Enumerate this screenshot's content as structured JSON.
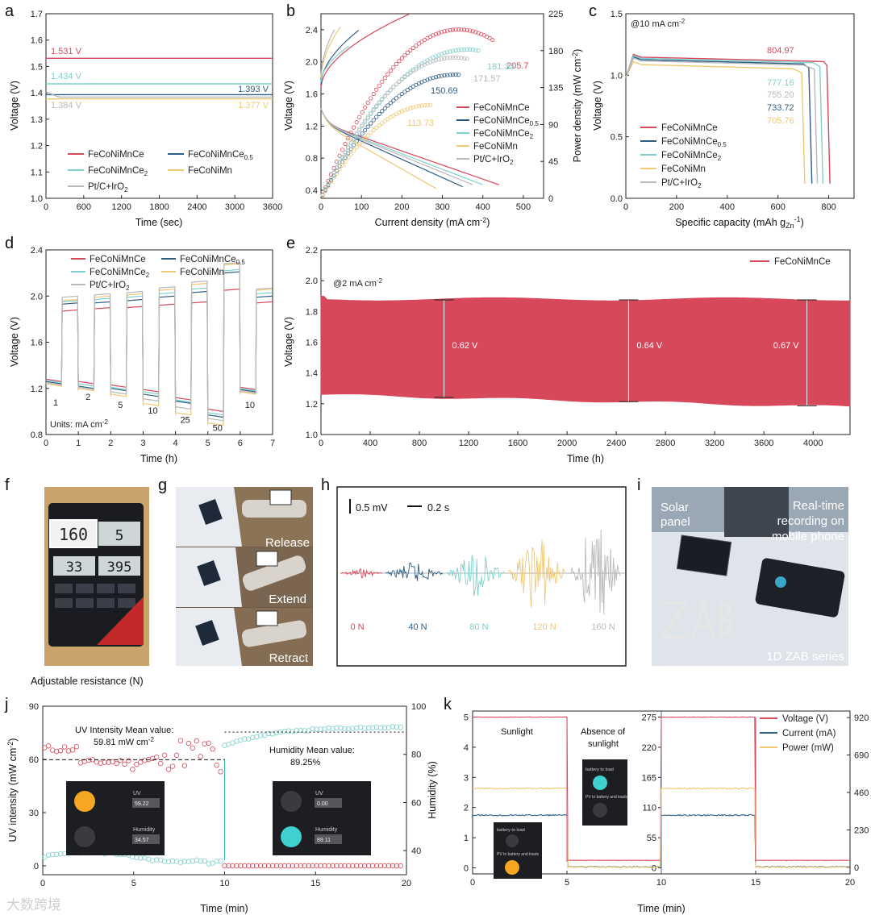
{
  "colors": {
    "red": "#d6485a",
    "blue": "#2f5d84",
    "cyan": "#7fd0cc",
    "yellow": "#efc873",
    "gray": "#b9b9b9",
    "teal": "#2bb5b0"
  },
  "series_names": [
    "FeCoNiMnCe",
    "FeCoNiMnCe0.5",
    "FeCoNiMnCe2",
    "FeCoNiMn",
    "Pt/C+IrO2"
  ],
  "chart_data": [
    {
      "panel": "a",
      "type": "line",
      "xlabel": "Time (sec)",
      "ylabel": "Voltage (V)",
      "xlim": [
        0,
        3600
      ],
      "ylim": [
        1.0,
        1.7
      ],
      "xticks": [
        0,
        600,
        1200,
        1800,
        2400,
        3000,
        3600
      ],
      "yticks": [
        1.0,
        1.1,
        1.2,
        1.3,
        1.4,
        1.5,
        1.6,
        1.7
      ],
      "series": [
        {
          "name": "FeCoNiMnCe",
          "value": 1.531
        },
        {
          "name": "FeCoNiMnCe0.5",
          "value": 1.393
        },
        {
          "name": "FeCoNiMnCe2",
          "value": 1.434
        },
        {
          "name": "FeCoNiMn",
          "value": 1.377
        },
        {
          "name": "Pt/C+IrO2",
          "value": 1.384
        }
      ],
      "annotations": [
        "1.531 V",
        "1.434 V",
        "1.393 V",
        "1.384 V",
        "1.377 V"
      ]
    },
    {
      "panel": "b",
      "type": "line",
      "xlabel": "Current density (mA cm-2)",
      "ylabel": "Voltage (V)",
      "y2label": "Power density (mW cm-2)",
      "xlim": [
        0,
        550
      ],
      "ylim": [
        0.3,
        2.6
      ],
      "y2lim": [
        0,
        225
      ],
      "xticks": [
        0,
        100,
        200,
        300,
        400,
        500
      ],
      "yticks": [
        0.4,
        0.8,
        1.2,
        1.6,
        2.0,
        2.4
      ],
      "y2ticks": [
        0,
        45,
        90,
        135,
        180,
        225
      ],
      "series": [
        {
          "name": "FeCoNiMnCe",
          "peak_power": 205.7,
          "peak_at": 340,
          "max_current": 440
        },
        {
          "name": "FeCoNiMnCe0.5",
          "peak_power": 150.69,
          "peak_at": 330,
          "max_current": 350
        },
        {
          "name": "FeCoNiMnCe2",
          "peak_power": 181.33,
          "peak_at": 360,
          "max_current": 400
        },
        {
          "name": "FeCoNiMn",
          "peak_power": 113.73,
          "peak_at": 270,
          "max_current": 285
        },
        {
          "name": "Pt/C+IrO2",
          "peak_power": 171.57,
          "peak_at": 330,
          "max_current": 375
        }
      ],
      "annotations": [
        "205.7",
        "181.33",
        "171.57",
        "150.69",
        "113.73"
      ]
    },
    {
      "panel": "c",
      "type": "line",
      "xlabel": "Specific capacity (mAh gZn-1)",
      "ylabel": "Voltage (V)",
      "xlim": [
        0,
        900
      ],
      "ylim": [
        0,
        1.5
      ],
      "xticks": [
        0,
        200,
        400,
        600,
        800
      ],
      "yticks": [
        0.0,
        0.5,
        1.0,
        1.5
      ],
      "condition": "@10 mA cm-2",
      "series": [
        {
          "name": "FeCoNiMnCe",
          "capacity": 804.97
        },
        {
          "name": "FeCoNiMnCe0.5",
          "capacity": 733.72
        },
        {
          "name": "FeCoNiMnCe2",
          "capacity": 777.16
        },
        {
          "name": "FeCoNiMn",
          "capacity": 705.76
        },
        {
          "name": "Pt/C+IrO2",
          "capacity": 755.2
        }
      ],
      "annotations": [
        "804.97",
        "777.16",
        "755.20",
        "733.72",
        "705.76"
      ]
    },
    {
      "panel": "d",
      "type": "line",
      "xlabel": "Time (h)",
      "ylabel": "Voltage (V)",
      "xlim": [
        0,
        7
      ],
      "ylim": [
        0.8,
        2.4
      ],
      "xticks": [
        0,
        1,
        2,
        3,
        4,
        5,
        6,
        7
      ],
      "yticks": [
        0.8,
        1.2,
        1.6,
        2.0,
        2.4
      ],
      "units_note": "Units: mA cm-2",
      "current_steps": [
        "1",
        "2",
        "5",
        "10",
        "25",
        "50",
        "10"
      ]
    },
    {
      "panel": "e",
      "type": "area",
      "xlabel": "Time (h)",
      "ylabel": "Voltage (V)",
      "xlim": [
        0,
        4300
      ],
      "ylim": [
        1.0,
        2.2
      ],
      "xticks": [
        0,
        400,
        800,
        1200,
        1600,
        2000,
        2400,
        2800,
        3200,
        3600,
        4000
      ],
      "yticks": [
        1.0,
        1.2,
        1.4,
        1.6,
        1.8,
        2.0,
        2.2
      ],
      "condition": "@2 mA cm-2",
      "legend": "FeCoNiMnCe",
      "gaps": [
        {
          "t": 1000,
          "v": "0.62 V"
        },
        {
          "t": 2500,
          "v": "0.64 V"
        },
        {
          "t": 3950,
          "v": "0.67 V"
        }
      ]
    },
    {
      "panel": "h",
      "type": "line",
      "scale_v": "0.5 mV",
      "scale_t": "0.2 s",
      "labels": [
        "0 N",
        "40 N",
        "80 N",
        "120 N",
        "160 N"
      ]
    },
    {
      "panel": "j",
      "type": "scatter",
      "xlabel": "Time (min)",
      "ylabel": "UV intensity (mW cm-2)",
      "y2label": "Humidity (%)",
      "xlim": [
        0,
        20
      ],
      "ylim": [
        -5,
        90
      ],
      "y2lim": [
        30,
        100
      ],
      "xticks": [
        0,
        5,
        10,
        15,
        20
      ],
      "yticks": [
        0,
        30,
        60,
        90
      ],
      "y2ticks": [
        40,
        60,
        80,
        100
      ],
      "uv_note": "UV Intensity Mean value:",
      "uv_value": "59.81 mW cm-2",
      "hum_note": "Humidity Mean value:",
      "hum_value": "89.25%"
    },
    {
      "panel": "k",
      "type": "line",
      "xlabel": "Time (min)",
      "xlim": [
        0,
        20
      ],
      "xticks": [
        0,
        5,
        10,
        15,
        20
      ],
      "yticks": [
        0,
        1,
        2,
        3,
        4,
        5
      ],
      "y_mid_ticks": [
        0,
        55,
        110,
        165,
        220,
        275
      ],
      "y_right_ticks": [
        0,
        230,
        460,
        690,
        920
      ],
      "legend": [
        "Voltage (V)",
        "Current (mA)",
        "Power (mW)"
      ],
      "notes": [
        "Sunlight",
        "Absence of",
        "sunlight"
      ]
    }
  ],
  "photos": {
    "f_caption": "Adjustable resistance (N)",
    "g_labels": [
      "Release",
      "Extend",
      "Retract"
    ],
    "i_labels": [
      "Solar",
      "panel",
      "Real-time",
      "recording on",
      "mobile phone",
      "1D ZAB series"
    ],
    "f_display": [
      "160",
      "5",
      "33",
      "395"
    ]
  },
  "app_cards": {
    "card1": {
      "uv": "UV",
      "uv_val": "59.22",
      "hum": "Humidity",
      "hum_val": "34.57"
    },
    "card2": {
      "uv": "UV",
      "uv_val": "0.00",
      "hum": "Humidity",
      "hum_val": "89.11"
    },
    "k1": {
      "a": "battery to load",
      "b": "PV to battery and loads"
    },
    "k2": {
      "a": "battery to load",
      "b": "PV to battery and loads"
    }
  },
  "panel_labels": [
    "a",
    "b",
    "c",
    "d",
    "e",
    "f",
    "g",
    "h",
    "i",
    "j",
    "k"
  ],
  "watermark": "大数跨境"
}
